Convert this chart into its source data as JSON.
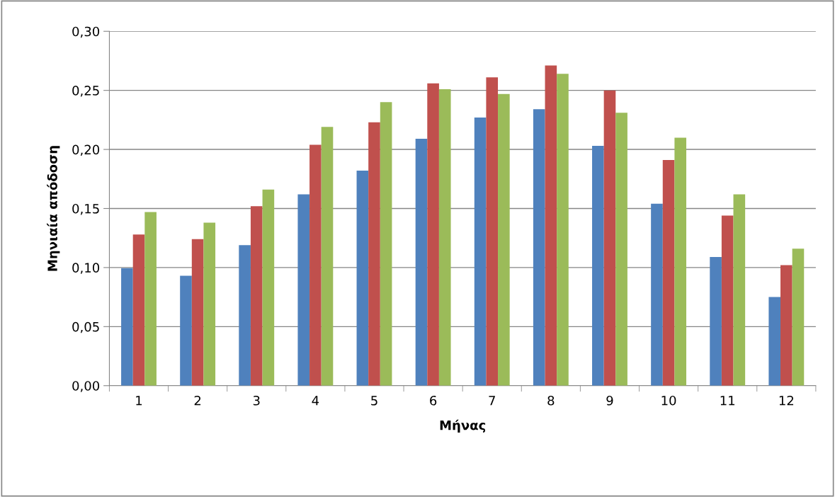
{
  "chart_data": {
    "type": "bar",
    "xlabel": "Μήνας",
    "ylabel": "Μηνιαία απόδοση",
    "categories": [
      "1",
      "2",
      "3",
      "4",
      "5",
      "6",
      "7",
      "8",
      "9",
      "10",
      "11",
      "12"
    ],
    "series": [
      {
        "color": "#4f81bd",
        "values": [
          0.0995,
          0.093,
          0.119,
          0.162,
          0.182,
          0.209,
          0.227,
          0.234,
          0.203,
          0.154,
          0.109,
          0.075
        ]
      },
      {
        "color": "#c0504d",
        "values": [
          0.128,
          0.124,
          0.152,
          0.204,
          0.223,
          0.256,
          0.261,
          0.271,
          0.25,
          0.191,
          0.144,
          0.102
        ]
      },
      {
        "color": "#9bbb59",
        "values": [
          0.147,
          0.138,
          0.166,
          0.219,
          0.24,
          0.251,
          0.247,
          0.264,
          0.231,
          0.21,
          0.162,
          0.116
        ]
      }
    ],
    "ylim": [
      0,
      0.3
    ],
    "yticks": [
      {
        "value": 0,
        "label": "0,00"
      },
      {
        "value": 0.05,
        "label": "0,05"
      },
      {
        "value": 0.1,
        "label": "0,10"
      },
      {
        "value": 0.15,
        "label": "0,15"
      },
      {
        "value": 0.2,
        "label": "0,20"
      },
      {
        "value": 0.25,
        "label": "0,25"
      },
      {
        "value": 0.3,
        "label": "0,30"
      }
    ],
    "grid": "y"
  }
}
